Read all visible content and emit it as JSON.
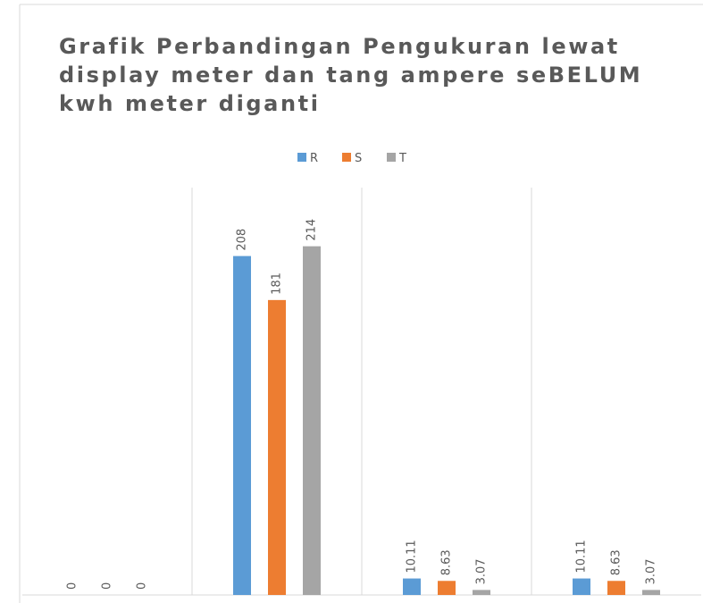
{
  "chart_data": {
    "type": "bar",
    "title": "Grafik Perbandingan Pengukuran lewat display meter dan tang ampere seBELUM kwh meter diganti",
    "categories": [
      null,
      null,
      null,
      null
    ],
    "series": [
      {
        "name": "R",
        "color": "#5b9bd5",
        "values": [
          0,
          208,
          10.11,
          10.11
        ]
      },
      {
        "name": "S",
        "color": "#ed7d31",
        "values": [
          0,
          181,
          8.63,
          8.63
        ]
      },
      {
        "name": "T",
        "color": "#a5a5a5",
        "values": [
          0,
          214,
          3.07,
          3.07
        ]
      }
    ],
    "ylim": [
      0,
      250
    ],
    "legend": "top"
  }
}
